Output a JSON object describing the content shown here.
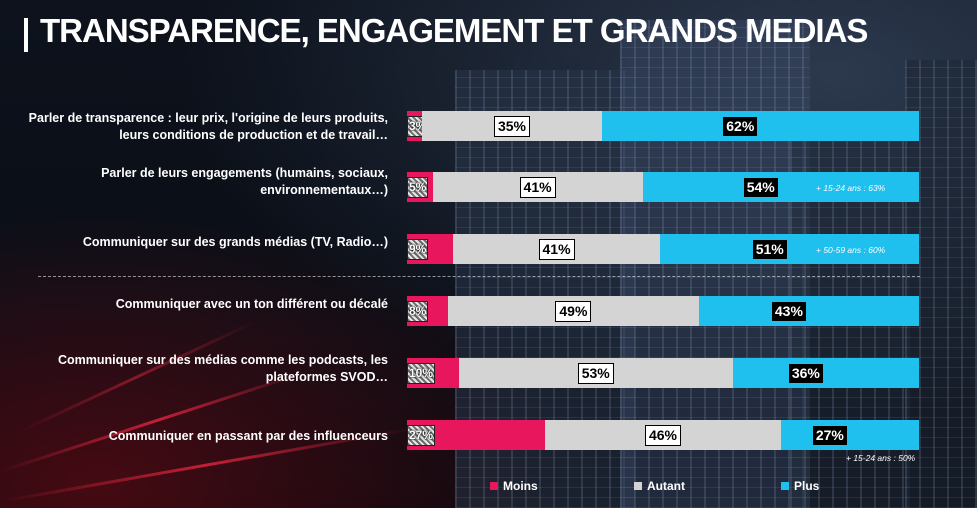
{
  "title": "TRANSPARENCE, ENGAGEMENT ET GRANDS MEDIAS",
  "colors": {
    "moins": "#e8175d",
    "autant": "#d4d4d4",
    "plus": "#1fbfee"
  },
  "legend": {
    "moins": "Moins",
    "autant": "Autant",
    "plus": "Plus"
  },
  "chart_data": {
    "type": "bar",
    "orientation": "horizontal",
    "stacked": true,
    "percent_stacked": true,
    "legend_position": "bottom",
    "categories": [
      "Parler de transparence : leur prix, l'origine de leurs produits, leurs conditions de production et de travail…",
      "Parler de leurs engagements (humains, sociaux, environnementaux…)",
      "Communiquer sur des grands médias (TV, Radio…)",
      "Communiquer avec un ton différent ou décalé",
      "Communiquer sur des médias comme les podcasts, les plateformes SVOD…",
      "Communiquer en passant par des influenceurs"
    ],
    "series": [
      {
        "name": "Moins",
        "values": [
          3,
          5,
          9,
          8,
          10,
          27
        ],
        "labels": [
          "3%",
          "5%",
          "9%",
          "8%",
          "10%",
          "27%"
        ]
      },
      {
        "name": "Autant",
        "values": [
          35,
          41,
          41,
          49,
          53,
          46
        ],
        "labels": [
          "35%",
          "41%",
          "41%",
          "49%",
          "53%",
          "46%"
        ]
      },
      {
        "name": "Plus",
        "values": [
          62,
          54,
          51,
          43,
          36,
          27
        ],
        "labels": [
          "62%",
          "54%",
          "51%",
          "43%",
          "36%",
          "27%"
        ]
      }
    ],
    "annotations": [
      "",
      "+ 15-24 ans : 63%",
      "+ 50-59 ans : 60%",
      "",
      "",
      "+ 15-24 ans : 50%"
    ]
  }
}
